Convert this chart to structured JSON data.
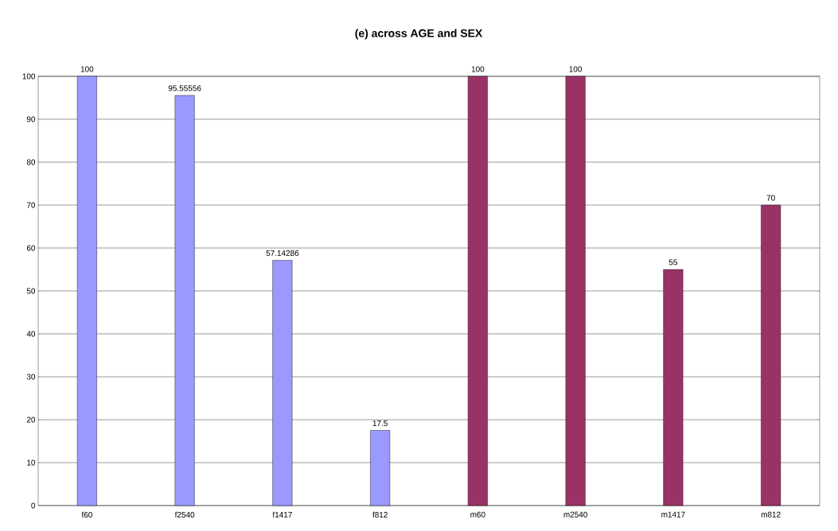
{
  "chart_data": {
    "type": "bar",
    "title": "(e) across AGE and SEX",
    "categories": [
      "f60",
      "f2540",
      "f1417",
      "f812",
      "m60",
      "m2540",
      "m1417",
      "m812"
    ],
    "values": [
      100,
      95.55556,
      57.14286,
      17.5,
      100,
      100,
      55,
      70
    ],
    "colors": [
      "#9999ff",
      "#9999ff",
      "#9999ff",
      "#9999ff",
      "#993366",
      "#993366",
      "#993366",
      "#993366"
    ],
    "ylim": [
      0,
      100
    ],
    "yticks": [
      0,
      10,
      20,
      30,
      40,
      50,
      60,
      70,
      80,
      90,
      100
    ],
    "grid": "y",
    "data_labels": true
  }
}
